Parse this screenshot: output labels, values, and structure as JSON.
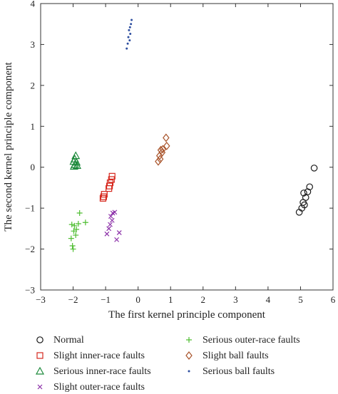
{
  "chart_data": {
    "type": "scatter",
    "xlabel": "The first kernel principle component",
    "ylabel": "The second kernel principle component",
    "xlim": [
      -3,
      6
    ],
    "ylim": [
      -3,
      4
    ],
    "xticks": [
      -3,
      -2,
      -1,
      0,
      1,
      2,
      3,
      4,
      5,
      6
    ],
    "yticks": [
      -3,
      -2,
      -1,
      0,
      1,
      2,
      3,
      4
    ],
    "xtick_labels": [
      "−3",
      "−2",
      "−1",
      "0",
      "1",
      "2",
      "3",
      "4",
      "5",
      "6"
    ],
    "ytick_labels": [
      "−3",
      "−2",
      "−1",
      "0",
      "1",
      "2",
      "3",
      "4"
    ],
    "grid": false,
    "legend_position": "bottom",
    "series": [
      {
        "name": "Normal",
        "marker": "circle",
        "color": "#1a1a1a",
        "points": [
          [
            5.42,
            -0.02
          ],
          [
            5.28,
            -0.48
          ],
          [
            5.22,
            -0.6
          ],
          [
            5.1,
            -0.63
          ],
          [
            5.16,
            -0.74
          ],
          [
            5.08,
            -0.86
          ],
          [
            5.12,
            -0.92
          ],
          [
            5.04,
            -1.0
          ],
          [
            4.96,
            -1.1
          ]
        ]
      },
      {
        "name": "Slight inner-race faults",
        "marker": "square",
        "color": "#d6281e",
        "points": [
          [
            -0.8,
            -0.22
          ],
          [
            -0.82,
            -0.3
          ],
          [
            -0.86,
            -0.38
          ],
          [
            -0.88,
            -0.46
          ],
          [
            -0.9,
            -0.52
          ],
          [
            -1.04,
            -0.66
          ],
          [
            -1.06,
            -0.72
          ],
          [
            -1.08,
            -0.76
          ]
        ]
      },
      {
        "name": "Serious inner-race faults",
        "marker": "triangle",
        "color": "#1e8a3c",
        "points": [
          [
            -1.92,
            0.28
          ],
          [
            -1.95,
            0.2
          ],
          [
            -1.98,
            0.14
          ],
          [
            -1.9,
            0.12
          ],
          [
            -1.95,
            0.06
          ],
          [
            -1.88,
            0.04
          ],
          [
            -1.97,
            0.02
          ]
        ]
      },
      {
        "name": "Slight outer-race faults",
        "marker": "x",
        "color": "#8b2fa8",
        "points": [
          [
            -0.72,
            -1.1
          ],
          [
            -0.78,
            -1.12
          ],
          [
            -0.84,
            -1.2
          ],
          [
            -0.8,
            -1.3
          ],
          [
            -0.86,
            -1.4
          ],
          [
            -0.9,
            -1.5
          ],
          [
            -0.58,
            -1.6
          ],
          [
            -0.96,
            -1.63
          ],
          [
            -0.66,
            -1.77
          ]
        ]
      },
      {
        "name": "Serious outer-race faults",
        "marker": "plus",
        "color": "#4fbe32",
        "points": [
          [
            -1.8,
            -1.12
          ],
          [
            -1.62,
            -1.35
          ],
          [
            -1.84,
            -1.38
          ],
          [
            -1.96,
            -1.43
          ],
          [
            -2.04,
            -1.4
          ],
          [
            -1.9,
            -1.52
          ],
          [
            -1.98,
            -1.56
          ],
          [
            -1.92,
            -1.66
          ],
          [
            -2.06,
            -1.74
          ],
          [
            -2.02,
            -1.92
          ],
          [
            -2.0,
            -2.0
          ]
        ]
      },
      {
        "name": "Slight ball faults",
        "marker": "diamond",
        "color": "#a8532a",
        "points": [
          [
            0.86,
            0.72
          ],
          [
            0.76,
            0.44
          ],
          [
            0.88,
            0.52
          ],
          [
            0.7,
            0.42
          ],
          [
            0.74,
            0.36
          ],
          [
            0.66,
            0.28
          ],
          [
            0.68,
            0.2
          ],
          [
            0.62,
            0.14
          ]
        ]
      },
      {
        "name": "Serious ball faults",
        "marker": "dot",
        "color": "#2f4fa0",
        "points": [
          [
            -0.2,
            3.6
          ],
          [
            -0.22,
            3.5
          ],
          [
            -0.25,
            3.42
          ],
          [
            -0.28,
            3.35
          ],
          [
            -0.24,
            3.26
          ],
          [
            -0.3,
            3.18
          ],
          [
            -0.26,
            3.1
          ],
          [
            -0.32,
            3.02
          ],
          [
            -0.35,
            2.9
          ]
        ]
      }
    ]
  }
}
